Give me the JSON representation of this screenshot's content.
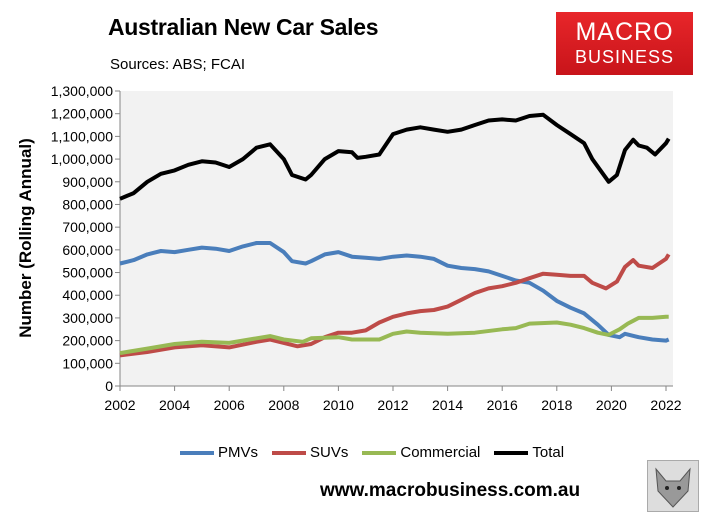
{
  "header": {
    "title": "Australian New Car Sales",
    "sources": "Sources: ABS; FCAI"
  },
  "logo": {
    "line1": "MACRO",
    "line2": "BUSINESS",
    "color": "#d91d22"
  },
  "footer": {
    "url": "www.macrobusiness.com.au",
    "icon": "wolf-logo-icon"
  },
  "chart_data": {
    "type": "line",
    "title": "Australian New Car Sales",
    "ylabel": "Number (Rolling Annual)",
    "xlabel": "",
    "xlim": [
      2002,
      2022
    ],
    "ylim": [
      0,
      1300000
    ],
    "xticks": [
      "2002",
      "2004",
      "2006",
      "2008",
      "2010",
      "2012",
      "2014",
      "2016",
      "2018",
      "2020",
      "2022"
    ],
    "yticks": [
      "0",
      "100,000",
      "200,000",
      "300,000",
      "400,000",
      "500,000",
      "600,000",
      "700,000",
      "800,000",
      "900,000",
      "1,000,000",
      "1,100,000",
      "1,200,000",
      "1,300,000"
    ],
    "grid": false,
    "legend": "bottom",
    "series": [
      {
        "name": "PMVs",
        "color": "#4a7ebb",
        "points": [
          [
            2002,
            540000
          ],
          [
            2002.5,
            555000
          ],
          [
            2003,
            580000
          ],
          [
            2003.5,
            595000
          ],
          [
            2004,
            590000
          ],
          [
            2004.5,
            600000
          ],
          [
            2005,
            610000
          ],
          [
            2005.5,
            605000
          ],
          [
            2006,
            595000
          ],
          [
            2006.5,
            615000
          ],
          [
            2007,
            630000
          ],
          [
            2007.5,
            630000
          ],
          [
            2008,
            590000
          ],
          [
            2008.3,
            550000
          ],
          [
            2008.8,
            540000
          ],
          [
            2009,
            550000
          ],
          [
            2009.5,
            580000
          ],
          [
            2010,
            590000
          ],
          [
            2010.5,
            570000
          ],
          [
            2011,
            565000
          ],
          [
            2011.5,
            560000
          ],
          [
            2012,
            570000
          ],
          [
            2012.5,
            575000
          ],
          [
            2013,
            570000
          ],
          [
            2013.5,
            560000
          ],
          [
            2014,
            530000
          ],
          [
            2014.5,
            520000
          ],
          [
            2015,
            515000
          ],
          [
            2015.5,
            505000
          ],
          [
            2016,
            485000
          ],
          [
            2016.5,
            465000
          ],
          [
            2017,
            455000
          ],
          [
            2017.5,
            420000
          ],
          [
            2018,
            375000
          ],
          [
            2018.5,
            345000
          ],
          [
            2019,
            320000
          ],
          [
            2019.5,
            270000
          ],
          [
            2019.9,
            225000
          ],
          [
            2020.3,
            215000
          ],
          [
            2020.5,
            230000
          ],
          [
            2021,
            215000
          ],
          [
            2021.5,
            205000
          ],
          [
            2022,
            200000
          ],
          [
            2022.1,
            205000
          ]
        ]
      },
      {
        "name": "SUVs",
        "color": "#be4b48",
        "points": [
          [
            2002,
            135000
          ],
          [
            2003,
            150000
          ],
          [
            2004,
            170000
          ],
          [
            2005,
            180000
          ],
          [
            2006,
            170000
          ],
          [
            2007,
            195000
          ],
          [
            2007.5,
            205000
          ],
          [
            2008,
            190000
          ],
          [
            2008.5,
            175000
          ],
          [
            2009,
            185000
          ],
          [
            2009.5,
            215000
          ],
          [
            2010,
            235000
          ],
          [
            2010.5,
            235000
          ],
          [
            2011,
            245000
          ],
          [
            2011.5,
            280000
          ],
          [
            2012,
            305000
          ],
          [
            2012.5,
            320000
          ],
          [
            2013,
            330000
          ],
          [
            2013.5,
            335000
          ],
          [
            2014,
            350000
          ],
          [
            2014.5,
            380000
          ],
          [
            2015,
            410000
          ],
          [
            2015.5,
            430000
          ],
          [
            2016,
            440000
          ],
          [
            2016.5,
            455000
          ],
          [
            2017,
            475000
          ],
          [
            2017.5,
            495000
          ],
          [
            2018,
            490000
          ],
          [
            2018.5,
            485000
          ],
          [
            2019,
            485000
          ],
          [
            2019.3,
            455000
          ],
          [
            2019.8,
            430000
          ],
          [
            2020.2,
            460000
          ],
          [
            2020.5,
            525000
          ],
          [
            2020.8,
            555000
          ],
          [
            2021,
            530000
          ],
          [
            2021.5,
            520000
          ],
          [
            2022,
            560000
          ],
          [
            2022.1,
            580000
          ]
        ]
      },
      {
        "name": "Commercial",
        "color": "#98b954",
        "points": [
          [
            2002,
            145000
          ],
          [
            2003,
            165000
          ],
          [
            2004,
            185000
          ],
          [
            2005,
            195000
          ],
          [
            2006,
            190000
          ],
          [
            2007,
            210000
          ],
          [
            2007.5,
            220000
          ],
          [
            2008,
            205000
          ],
          [
            2008.7,
            195000
          ],
          [
            2009,
            210000
          ],
          [
            2010,
            215000
          ],
          [
            2010.5,
            205000
          ],
          [
            2011,
            205000
          ],
          [
            2011.5,
            205000
          ],
          [
            2012,
            230000
          ],
          [
            2012.5,
            240000
          ],
          [
            2013,
            235000
          ],
          [
            2014,
            230000
          ],
          [
            2015,
            235000
          ],
          [
            2016,
            250000
          ],
          [
            2016.5,
            255000
          ],
          [
            2017,
            275000
          ],
          [
            2018,
            280000
          ],
          [
            2018.5,
            270000
          ],
          [
            2019,
            255000
          ],
          [
            2019.5,
            235000
          ],
          [
            2019.9,
            225000
          ],
          [
            2020.3,
            250000
          ],
          [
            2020.6,
            275000
          ],
          [
            2021,
            300000
          ],
          [
            2021.5,
            300000
          ],
          [
            2022,
            305000
          ],
          [
            2022.1,
            305000
          ]
        ]
      },
      {
        "name": "Total",
        "color": "#000000",
        "points": [
          [
            2002,
            825000
          ],
          [
            2002.5,
            850000
          ],
          [
            2003,
            900000
          ],
          [
            2003.5,
            935000
          ],
          [
            2004,
            950000
          ],
          [
            2004.5,
            975000
          ],
          [
            2005,
            990000
          ],
          [
            2005.5,
            985000
          ],
          [
            2006,
            965000
          ],
          [
            2006.5,
            1000000
          ],
          [
            2007,
            1050000
          ],
          [
            2007.5,
            1065000
          ],
          [
            2008,
            1000000
          ],
          [
            2008.3,
            930000
          ],
          [
            2008.8,
            910000
          ],
          [
            2009,
            930000
          ],
          [
            2009.5,
            1000000
          ],
          [
            2010,
            1035000
          ],
          [
            2010.5,
            1030000
          ],
          [
            2010.7,
            1005000
          ],
          [
            2011,
            1010000
          ],
          [
            2011.5,
            1020000
          ],
          [
            2012,
            1110000
          ],
          [
            2012.5,
            1130000
          ],
          [
            2013,
            1140000
          ],
          [
            2013.5,
            1130000
          ],
          [
            2014,
            1120000
          ],
          [
            2014.5,
            1130000
          ],
          [
            2015,
            1150000
          ],
          [
            2015.5,
            1170000
          ],
          [
            2016,
            1175000
          ],
          [
            2016.5,
            1170000
          ],
          [
            2017,
            1190000
          ],
          [
            2017.5,
            1195000
          ],
          [
            2018,
            1150000
          ],
          [
            2018.5,
            1110000
          ],
          [
            2019,
            1070000
          ],
          [
            2019.3,
            1000000
          ],
          [
            2019.6,
            950000
          ],
          [
            2019.9,
            900000
          ],
          [
            2020.2,
            930000
          ],
          [
            2020.5,
            1040000
          ],
          [
            2020.8,
            1085000
          ],
          [
            2021,
            1060000
          ],
          [
            2021.3,
            1050000
          ],
          [
            2021.6,
            1020000
          ],
          [
            2022,
            1070000
          ],
          [
            2022.1,
            1090000
          ]
        ]
      }
    ]
  }
}
